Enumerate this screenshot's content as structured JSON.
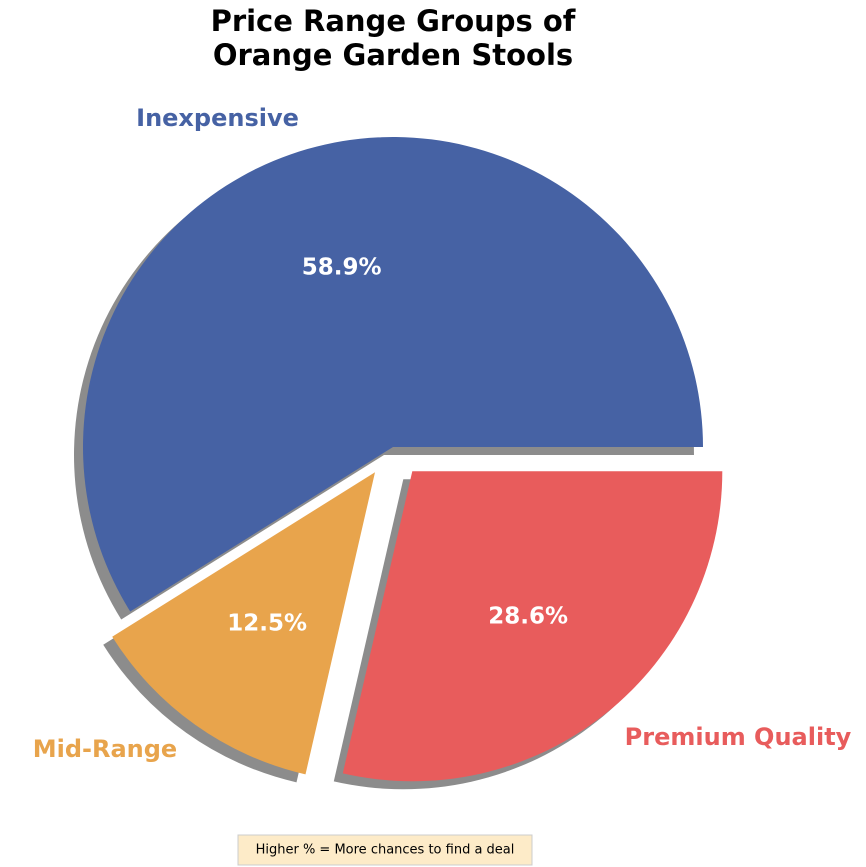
{
  "chart_data": {
    "type": "pie",
    "title": "Price Range Groups of\nOrange Garden Stools",
    "categories": [
      "Inexpensive",
      "Mid-Range",
      "Premium Quality"
    ],
    "values": [
      58.9,
      12.5,
      28.6
    ],
    "value_labels": [
      "58.9%",
      "12.5%",
      "28.6%"
    ],
    "colors": [
      "#4662a4",
      "#e8a44c",
      "#e85c5c"
    ],
    "explode": [
      0,
      0.1,
      0.1
    ],
    "startangle": 0,
    "shadow": true,
    "annotation": "Higher % = More chances to find a deal"
  }
}
